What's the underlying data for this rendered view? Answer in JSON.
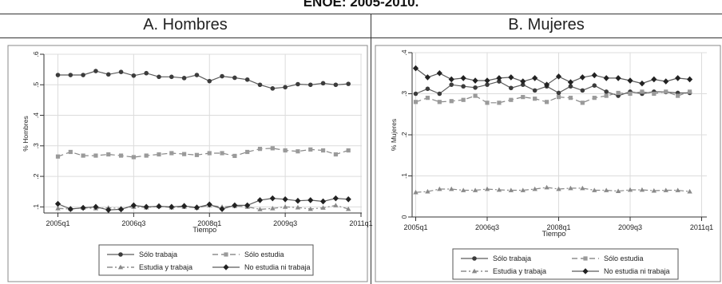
{
  "title": "ENOE: 2005-2010.",
  "panels": [
    {
      "label": "A.   Hombres"
    },
    {
      "label": "B.   Mujeres"
    }
  ],
  "colors": {
    "line": "#5a5a5a",
    "marker": "#3c3c3c",
    "grid": "#dcdcdc",
    "frame": "#333333"
  },
  "chart_data": [
    {
      "type": "line",
      "title": "A.   Hombres",
      "xlabel": "Tiempo",
      "ylabel": "% Hombres",
      "x": [
        "2005q1",
        "2005q2",
        "2005q3",
        "2005q4",
        "2006q1",
        "2006q2",
        "2006q3",
        "2006q4",
        "2007q1",
        "2007q2",
        "2007q3",
        "2007q4",
        "2008q1",
        "2008q2",
        "2008q3",
        "2008q4",
        "2009q1",
        "2009q2",
        "2009q3",
        "2009q4",
        "2010q1",
        "2010q2",
        "2010q3",
        "2010q4"
      ],
      "x_ticks": [
        "2005q1",
        "2006q3",
        "2008q1",
        "2009q3",
        "2011q1"
      ],
      "y_ticks": [
        ".1",
        ".2",
        ".3",
        ".4",
        ".5",
        ".6"
      ],
      "ylim": [
        0.08,
        0.6
      ],
      "grid": true,
      "legend_position": "bottom",
      "series": [
        {
          "name": "Sólo trabaja",
          "marker": "circle",
          "dash": "solid",
          "values": [
            0.532,
            0.532,
            0.532,
            0.545,
            0.534,
            0.542,
            0.53,
            0.538,
            0.526,
            0.526,
            0.522,
            0.532,
            0.512,
            0.528,
            0.523,
            0.517,
            0.5,
            0.488,
            0.492,
            0.502,
            0.5,
            0.505,
            0.5,
            0.503
          ]
        },
        {
          "name": "Sólo estudia",
          "marker": "square",
          "dash": "long-dash",
          "values": [
            0.265,
            0.28,
            0.268,
            0.268,
            0.272,
            0.268,
            0.263,
            0.268,
            0.272,
            0.276,
            0.273,
            0.27,
            0.276,
            0.276,
            0.267,
            0.28,
            0.29,
            0.292,
            0.285,
            0.282,
            0.288,
            0.285,
            0.272,
            0.285
          ]
        },
        {
          "name": "Estudia y trabaja",
          "marker": "triangle",
          "dash": "dash-dot",
          "values": [
            0.095,
            0.093,
            0.097,
            0.095,
            0.097,
            0.095,
            0.1,
            0.098,
            0.102,
            0.098,
            0.1,
            0.097,
            0.105,
            0.1,
            0.103,
            0.1,
            0.092,
            0.095,
            0.1,
            0.098,
            0.093,
            0.097,
            0.105,
            0.093
          ]
        },
        {
          "name": "No estudia ni trabaja",
          "marker": "diamond",
          "dash": "solid",
          "values": [
            0.11,
            0.093,
            0.097,
            0.1,
            0.09,
            0.092,
            0.105,
            0.1,
            0.102,
            0.1,
            0.103,
            0.098,
            0.108,
            0.093,
            0.105,
            0.105,
            0.122,
            0.128,
            0.125,
            0.12,
            0.122,
            0.118,
            0.128,
            0.125
          ]
        }
      ]
    },
    {
      "type": "line",
      "title": "B.   Mujeres",
      "xlabel": "Tiempo",
      "ylabel": "% Mujeres",
      "x": [
        "2005q1",
        "2005q2",
        "2005q3",
        "2005q4",
        "2006q1",
        "2006q2",
        "2006q3",
        "2006q4",
        "2007q1",
        "2007q2",
        "2007q3",
        "2007q4",
        "2008q1",
        "2008q2",
        "2008q3",
        "2008q4",
        "2009q1",
        "2009q2",
        "2009q3",
        "2009q4",
        "2010q1",
        "2010q2",
        "2010q3",
        "2010q4"
      ],
      "x_ticks": [
        "2005q1",
        "2006q3",
        "2008q1",
        "2009q3",
        "2011q1"
      ],
      "y_ticks": [
        "0",
        ".1",
        ".2",
        ".3",
        ".4"
      ],
      "ylim": [
        0,
        0.4
      ],
      "grid": true,
      "legend_position": "bottom",
      "series": [
        {
          "name": "Sólo trabaja",
          "marker": "circle",
          "dash": "solid",
          "values": [
            0.3,
            0.312,
            0.3,
            0.322,
            0.318,
            0.315,
            0.322,
            0.33,
            0.314,
            0.322,
            0.308,
            0.318,
            0.302,
            0.318,
            0.308,
            0.32,
            0.305,
            0.295,
            0.305,
            0.3,
            0.305,
            0.304,
            0.302,
            0.302
          ]
        },
        {
          "name": "Sólo estudia",
          "marker": "square",
          "dash": "long-dash",
          "values": [
            0.28,
            0.29,
            0.28,
            0.282,
            0.285,
            0.295,
            0.278,
            0.278,
            0.285,
            0.292,
            0.288,
            0.28,
            0.292,
            0.29,
            0.278,
            0.29,
            0.295,
            0.302,
            0.3,
            0.305,
            0.3,
            0.305,
            0.295,
            0.305
          ]
        },
        {
          "name": "Estudia y trabaja",
          "marker": "triangle",
          "dash": "dash-dot",
          "values": [
            0.06,
            0.062,
            0.068,
            0.068,
            0.065,
            0.065,
            0.068,
            0.066,
            0.065,
            0.065,
            0.068,
            0.072,
            0.068,
            0.07,
            0.07,
            0.065,
            0.065,
            0.063,
            0.066,
            0.066,
            0.064,
            0.065,
            0.065,
            0.062
          ]
        },
        {
          "name": "No estudia ni trabaja",
          "marker": "diamond",
          "dash": "solid",
          "values": [
            0.362,
            0.34,
            0.35,
            0.335,
            0.338,
            0.332,
            0.332,
            0.338,
            0.34,
            0.33,
            0.338,
            0.322,
            0.342,
            0.328,
            0.34,
            0.345,
            0.338,
            0.338,
            0.332,
            0.325,
            0.335,
            0.33,
            0.338,
            0.335
          ]
        }
      ]
    }
  ]
}
